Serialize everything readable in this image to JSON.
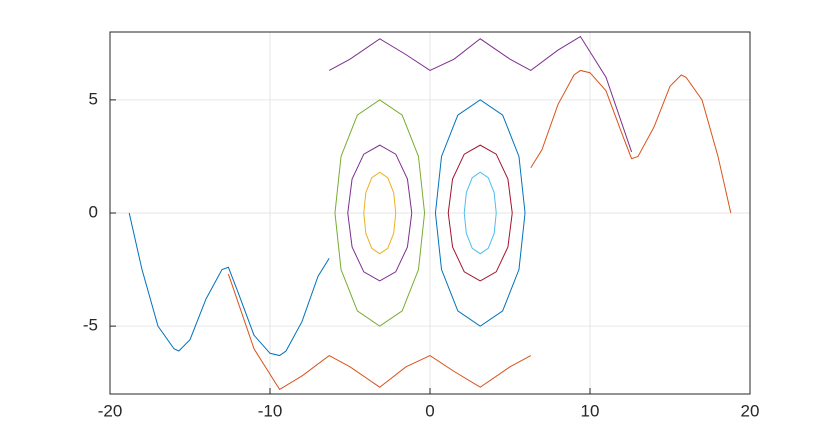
{
  "chart_data": {
    "type": "line",
    "xlim": [
      -20,
      20
    ],
    "ylim": [
      -8,
      8
    ],
    "xticks": [
      -20,
      -10,
      0,
      10,
      20
    ],
    "yticks": [
      -5,
      0,
      5
    ],
    "grid": true,
    "series": [
      {
        "color": "#0072BD",
        "x": [
          -18.8,
          -18,
          -17,
          -16,
          -15.7,
          -15,
          -14,
          -13,
          -12.6,
          -12,
          -11,
          -10,
          -9.4,
          -9,
          -8,
          -7,
          -6.3
        ],
        "values": [
          0,
          -2.5,
          -5,
          -6,
          -6.1,
          -5.6,
          -3.8,
          -2.5,
          -2.4,
          -3.5,
          -5.4,
          -6.2,
          -6.3,
          -6.1,
          -4.8,
          -2.8,
          -2
        ]
      },
      {
        "color": "#D95319",
        "x": [
          18.8,
          18,
          17,
          16,
          15.7,
          15,
          14,
          13,
          12.6,
          12,
          11,
          10,
          9.4,
          9,
          8,
          7,
          6.3
        ],
        "values": [
          0,
          2.5,
          5,
          6,
          6.1,
          5.6,
          3.8,
          2.5,
          2.4,
          3.5,
          5.4,
          6.2,
          6.3,
          6.1,
          4.8,
          2.8,
          2
        ]
      },
      {
        "color": "#EDB120",
        "x": [
          -2.14,
          -2.27,
          -2.64,
          -3.14,
          -3.64,
          -4.01,
          -4.14,
          -4.01,
          -3.64,
          -3.14,
          -2.64,
          -2.27,
          -2.14
        ],
        "values": [
          0,
          0.9,
          1.56,
          1.8,
          1.56,
          0.9,
          0,
          -0.9,
          -1.56,
          -1.8,
          -1.56,
          -0.9,
          0
        ]
      },
      {
        "color": "#7E2F8E",
        "x": [
          -1.14,
          -1.41,
          -2.14,
          -3.14,
          -4.14,
          -4.87,
          -5.14,
          -4.87,
          -4.14,
          -3.14,
          -2.14,
          -1.41,
          -1.14
        ],
        "values": [
          0,
          1.5,
          2.6,
          3,
          2.6,
          1.5,
          0,
          -1.5,
          -2.6,
          -3,
          -2.6,
          -1.5,
          0
        ]
      },
      {
        "color": "#77AC30",
        "x": [
          -0.34,
          -0.72,
          -1.74,
          -3.14,
          -4.54,
          -5.56,
          -5.94,
          -5.56,
          -4.54,
          -3.14,
          -1.74,
          -0.72,
          -0.34
        ],
        "values": [
          0,
          2.5,
          4.33,
          5,
          4.33,
          2.5,
          0,
          -2.5,
          -4.33,
          -5,
          -4.33,
          -2.5,
          0
        ]
      },
      {
        "color": "#4DBEEE",
        "x": [
          4.14,
          4.01,
          3.64,
          3.14,
          2.64,
          2.27,
          2.14,
          2.27,
          2.64,
          3.14,
          3.64,
          4.01,
          4.14
        ],
        "values": [
          0,
          0.9,
          1.56,
          1.8,
          1.56,
          0.9,
          0,
          -0.9,
          -1.56,
          -1.8,
          -1.56,
          -0.9,
          0
        ]
      },
      {
        "color": "#A2142F",
        "x": [
          5.14,
          4.87,
          4.14,
          3.14,
          2.14,
          1.41,
          1.14,
          1.41,
          2.14,
          3.14,
          4.14,
          4.87,
          5.14
        ],
        "values": [
          0,
          1.5,
          2.6,
          3,
          2.6,
          1.5,
          0,
          -1.5,
          -2.6,
          -3,
          -2.6,
          -1.5,
          0
        ]
      },
      {
        "color": "#0072BD",
        "x": [
          5.94,
          5.56,
          4.54,
          3.14,
          1.74,
          0.72,
          0.34,
          0.72,
          1.74,
          3.14,
          4.54,
          5.56,
          5.94
        ],
        "values": [
          0,
          2.5,
          4.33,
          5,
          4.33,
          2.5,
          0,
          -2.5,
          -4.33,
          -5,
          -4.33,
          -2.5,
          0
        ]
      },
      {
        "color": "#7E2F8E",
        "x": [
          -6.3,
          -5,
          -3.14,
          -1.5,
          0,
          1.5,
          3.14,
          5,
          6.3,
          8,
          9.4,
          11,
          12.6
        ],
        "values": [
          6.3,
          6.8,
          7.7,
          7,
          6.3,
          6.8,
          7.7,
          6.8,
          6.3,
          7.2,
          7.8,
          6,
          2.7
        ]
      },
      {
        "color": "#D95319",
        "x": [
          6.3,
          5,
          3.14,
          1.5,
          0,
          -1.5,
          -3.14,
          -5,
          -6.3,
          -8,
          -9.4,
          -11,
          -12.6
        ],
        "values": [
          -6.3,
          -6.8,
          -7.7,
          -7,
          -6.3,
          -6.8,
          -7.7,
          -6.8,
          -6.3,
          -7.2,
          -7.8,
          -6,
          -2.7
        ]
      }
    ]
  }
}
